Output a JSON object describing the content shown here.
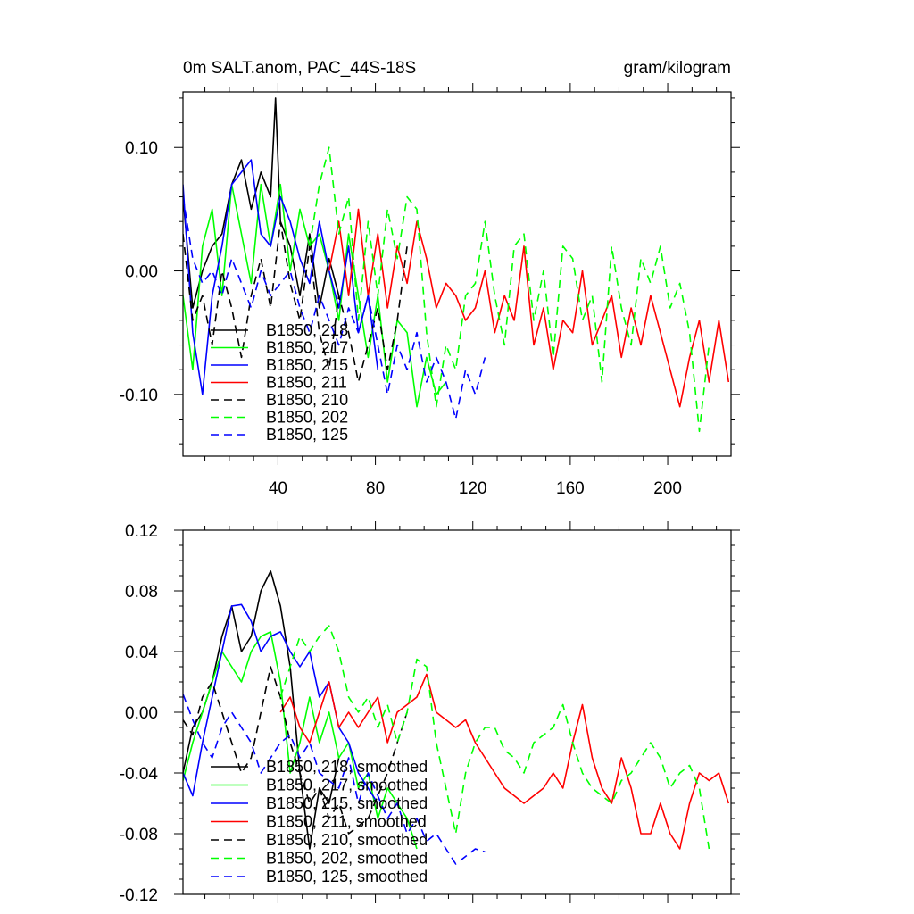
{
  "chart_data": [
    {
      "type": "line",
      "title": "0m SALT.anom, PAC_44S-18S",
      "units": "gram/kilogram",
      "xlabel": "",
      "ylabel": "",
      "xlim": [
        1,
        226
      ],
      "ylim": [
        -0.15,
        0.145
      ],
      "xticks": [
        40,
        80,
        120,
        160,
        200
      ],
      "xtick_labels": [
        "40",
        "80",
        "120",
        "160",
        "200"
      ],
      "yticks": [
        -0.1,
        0.0,
        0.1
      ],
      "ytick_labels": [
        "-0.10",
        "0.00",
        "0.10"
      ],
      "series": [
        {
          "name": "B1850, 218",
          "color": "#000000",
          "dash": "solid",
          "x": [
            1,
            5,
            9,
            13,
            17,
            21,
            25,
            29,
            33,
            37,
            39,
            41,
            45,
            49,
            53,
            57,
            61,
            65
          ],
          "y": [
            0.06,
            -0.03,
            0.0,
            0.02,
            0.03,
            0.07,
            0.09,
            0.05,
            0.08,
            0.06,
            0.14,
            0.04,
            0.02,
            -0.02,
            0.03,
            -0.03,
            0.01,
            -0.02
          ]
        },
        {
          "name": "B1850, 217",
          "color": "#00ff00",
          "dash": "solid",
          "x": [
            1,
            5,
            9,
            13,
            17,
            21,
            25,
            29,
            33,
            37,
            41,
            45,
            49,
            53,
            57,
            61,
            65,
            69,
            73,
            77,
            81,
            85,
            89,
            93,
            97,
            101,
            105,
            109
          ],
          "y": [
            -0.02,
            -0.08,
            0.02,
            0.05,
            -0.02,
            0.07,
            0.03,
            -0.01,
            0.07,
            0.02,
            0.07,
            0.0,
            0.05,
            0.02,
            0.03,
            0.0,
            -0.04,
            0.03,
            -0.02,
            -0.07,
            -0.02,
            -0.09,
            -0.04,
            -0.05,
            -0.11,
            -0.07,
            -0.1,
            -0.09
          ]
        },
        {
          "name": "B1850, 215",
          "color": "#0000ff",
          "dash": "solid",
          "x": [
            1,
            5,
            9,
            13,
            17,
            21,
            25,
            29,
            33,
            37,
            41,
            45,
            49,
            53,
            57,
            61,
            65,
            69,
            73,
            77,
            81
          ],
          "y": [
            0.07,
            -0.05,
            -0.1,
            -0.02,
            0.02,
            0.07,
            0.08,
            0.09,
            0.03,
            0.02,
            0.06,
            0.04,
            0.01,
            -0.01,
            0.04,
            0.0,
            -0.03,
            0.02,
            -0.05,
            -0.02,
            -0.08
          ]
        },
        {
          "name": "B1850, 211",
          "color": "#ff0000",
          "dash": "solid",
          "x": [
            61,
            65,
            69,
            73,
            77,
            81,
            85,
            89,
            93,
            97,
            101,
            105,
            109,
            113,
            117,
            121,
            125,
            129,
            133,
            137,
            141,
            145,
            149,
            153,
            157,
            161,
            165,
            169,
            173,
            177,
            181,
            185,
            189,
            193,
            197,
            201,
            205,
            209,
            213,
            217,
            221,
            225
          ],
          "y": [
            0.0,
            0.04,
            -0.02,
            0.05,
            -0.02,
            0.03,
            -0.03,
            0.02,
            -0.01,
            0.04,
            0.01,
            -0.03,
            -0.01,
            -0.02,
            -0.04,
            -0.03,
            0.0,
            -0.05,
            -0.02,
            -0.04,
            0.02,
            -0.06,
            -0.03,
            -0.08,
            -0.04,
            -0.05,
            0.0,
            -0.06,
            -0.04,
            -0.02,
            -0.07,
            -0.03,
            -0.06,
            -0.02,
            -0.05,
            -0.08,
            -0.11,
            -0.07,
            -0.04,
            -0.09,
            -0.04,
            -0.09
          ]
        },
        {
          "name": "B1850, 210",
          "color": "#000000",
          "dash": "dashed",
          "x": [
            1,
            5,
            9,
            13,
            17,
            21,
            25,
            29,
            33,
            37,
            41,
            45,
            49,
            53,
            57,
            61,
            65,
            69,
            73,
            77,
            81,
            85,
            89,
            93
          ],
          "y": [
            0.03,
            -0.04,
            -0.02,
            -0.06,
            0.0,
            -0.03,
            -0.07,
            -0.02,
            0.01,
            -0.03,
            0.04,
            -0.01,
            -0.04,
            0.02,
            -0.05,
            -0.08,
            -0.02,
            -0.05,
            -0.09,
            -0.06,
            -0.03,
            -0.08,
            -0.04,
            0.02
          ]
        },
        {
          "name": "B1850, 202",
          "color": "#00ff00",
          "dash": "dashed",
          "x": [
            53,
            57,
            61,
            65,
            69,
            73,
            77,
            81,
            85,
            89,
            93,
            97,
            101,
            105,
            109,
            113,
            117,
            121,
            125,
            129,
            133,
            137,
            141,
            145,
            149,
            153,
            157,
            161,
            165,
            169,
            173,
            177,
            181,
            185,
            189,
            193,
            197,
            201,
            205,
            209,
            213,
            217
          ],
          "y": [
            0.02,
            0.07,
            0.1,
            0.03,
            0.06,
            -0.04,
            0.04,
            -0.02,
            0.05,
            0.01,
            0.06,
            0.05,
            -0.05,
            -0.11,
            -0.06,
            -0.08,
            -0.02,
            -0.01,
            0.04,
            -0.02,
            -0.06,
            0.02,
            0.03,
            -0.04,
            0.0,
            -0.07,
            0.02,
            0.01,
            -0.04,
            -0.02,
            -0.09,
            0.02,
            -0.03,
            -0.06,
            0.01,
            -0.01,
            0.02,
            -0.03,
            -0.01,
            -0.05,
            -0.13,
            -0.06
          ]
        },
        {
          "name": "B1850, 125",
          "color": "#0000ff",
          "dash": "dashed",
          "x": [
            1,
            5,
            9,
            13,
            17,
            21,
            25,
            29,
            33,
            37,
            41,
            45,
            49,
            53,
            57,
            61,
            65,
            69,
            73,
            77,
            81,
            85,
            89,
            93,
            97,
            101,
            105,
            109,
            113,
            117,
            121,
            125
          ],
          "y": [
            0.06,
            0.01,
            -0.01,
            0.0,
            -0.02,
            0.01,
            -0.01,
            -0.03,
            0.0,
            -0.02,
            -0.01,
            0.0,
            -0.03,
            -0.05,
            -0.02,
            -0.04,
            -0.06,
            -0.03,
            -0.05,
            -0.02,
            -0.06,
            -0.1,
            -0.06,
            -0.08,
            -0.05,
            -0.09,
            -0.07,
            -0.09,
            -0.12,
            -0.08,
            -0.1,
            -0.07
          ]
        }
      ],
      "legend": "lower-left"
    },
    {
      "type": "line",
      "title": "",
      "xlabel": "",
      "ylabel": "",
      "xlim": [
        1,
        226
      ],
      "ylim": [
        -0.12,
        0.12
      ],
      "xticks": [
        40,
        80,
        120,
        160,
        200
      ],
      "yticks": [
        -0.12,
        -0.08,
        -0.04,
        0.0,
        0.04,
        0.08,
        0.12
      ],
      "ytick_labels": [
        "-0.12",
        "-0.08",
        "-0.04",
        "0.00",
        "0.04",
        "0.08",
        "0.12"
      ],
      "series": [
        {
          "name": "B1850, 218, smoothed",
          "color": "#000000",
          "dash": "solid",
          "x": [
            1,
            5,
            9,
            13,
            17,
            21,
            25,
            29,
            33,
            37,
            41,
            45,
            49,
            53,
            57,
            61,
            65
          ],
          "y": [
            -0.04,
            -0.01,
            0.0,
            0.02,
            0.05,
            0.07,
            0.04,
            0.05,
            0.08,
            0.093,
            0.07,
            0.03,
            -0.04,
            -0.09,
            -0.05,
            -0.06,
            -0.03
          ]
        },
        {
          "name": "B1850, 217, smoothed",
          "color": "#00ff00",
          "dash": "solid",
          "x": [
            1,
            5,
            9,
            13,
            17,
            21,
            25,
            29,
            33,
            37,
            41,
            45,
            49,
            53,
            57,
            61,
            65,
            69,
            73,
            77,
            81,
            85,
            89,
            93,
            97
          ],
          "y": [
            -0.045,
            -0.02,
            0.0,
            0.02,
            0.04,
            0.03,
            0.02,
            0.04,
            0.05,
            0.053,
            0.02,
            -0.04,
            -0.02,
            0.01,
            -0.02,
            0.0,
            -0.03,
            -0.02,
            -0.05,
            -0.04,
            -0.07,
            -0.05,
            -0.06,
            -0.07,
            -0.09
          ]
        },
        {
          "name": "B1850, 215, smoothed",
          "color": "#0000ff",
          "dash": "solid",
          "x": [
            1,
            5,
            9,
            13,
            17,
            21,
            25,
            29,
            33,
            37,
            41,
            45,
            49,
            53,
            57,
            61,
            65,
            69,
            73,
            77,
            81
          ],
          "y": [
            -0.04,
            -0.055,
            -0.02,
            0.01,
            0.04,
            0.07,
            0.071,
            0.06,
            0.04,
            0.05,
            0.053,
            0.04,
            0.03,
            0.04,
            0.01,
            0.02,
            -0.01,
            -0.02,
            -0.04,
            -0.05,
            -0.06
          ]
        },
        {
          "name": "B1850, 211, smoothed",
          "color": "#ff0000",
          "dash": "solid",
          "x": [
            41,
            45,
            49,
            53,
            57,
            61,
            65,
            69,
            73,
            77,
            81,
            85,
            89,
            93,
            97,
            101,
            105,
            109,
            113,
            117,
            121,
            125,
            129,
            133,
            137,
            141,
            145,
            149,
            153,
            157,
            161,
            165,
            169,
            173,
            177,
            181,
            185,
            189,
            193,
            197,
            201,
            205,
            209,
            213,
            217,
            221,
            225
          ],
          "y": [
            0.0,
            0.01,
            -0.01,
            -0.02,
            0.0,
            0.02,
            -0.01,
            0.0,
            -0.01,
            0.0,
            0.01,
            -0.02,
            0.0,
            0.005,
            0.01,
            0.025,
            0.0,
            -0.005,
            -0.01,
            -0.005,
            -0.02,
            -0.03,
            -0.04,
            -0.05,
            -0.055,
            -0.06,
            -0.055,
            -0.05,
            -0.04,
            -0.05,
            -0.02,
            0.005,
            -0.03,
            -0.05,
            -0.06,
            -0.03,
            -0.05,
            -0.08,
            -0.08,
            -0.06,
            -0.08,
            -0.09,
            -0.06,
            -0.04,
            -0.045,
            -0.04,
            -0.06
          ]
        },
        {
          "name": "B1850, 210, smoothed",
          "color": "#000000",
          "dash": "dashed",
          "x": [
            1,
            5,
            9,
            13,
            17,
            21,
            25,
            29,
            33,
            37,
            41,
            45,
            49,
            53,
            57,
            61,
            65,
            69,
            73,
            77,
            81,
            85,
            89,
            93
          ],
          "y": [
            -0.005,
            -0.015,
            0.01,
            0.02,
            0.0,
            -0.02,
            -0.04,
            -0.03,
            0.0,
            0.03,
            0.01,
            -0.02,
            -0.04,
            -0.06,
            -0.05,
            -0.07,
            -0.06,
            -0.08,
            -0.075,
            -0.07,
            -0.055,
            -0.04,
            -0.02,
            0.0
          ]
        },
        {
          "name": "B1850, 202, smoothed",
          "color": "#00ff00",
          "dash": "dashed",
          "x": [
            41,
            45,
            49,
            53,
            57,
            61,
            65,
            69,
            73,
            77,
            81,
            85,
            89,
            93,
            97,
            101,
            105,
            109,
            113,
            117,
            121,
            125,
            129,
            133,
            137,
            141,
            145,
            149,
            153,
            157,
            161,
            165,
            169,
            173,
            177,
            181,
            185,
            189,
            193,
            197,
            201,
            205,
            209,
            213,
            217
          ],
          "y": [
            0.01,
            0.03,
            0.05,
            0.04,
            0.05,
            0.057,
            0.04,
            0.01,
            0.0,
            0.01,
            -0.01,
            0.005,
            -0.02,
            0.0,
            0.035,
            0.03,
            -0.02,
            -0.05,
            -0.08,
            -0.04,
            -0.02,
            -0.01,
            -0.01,
            -0.025,
            -0.03,
            -0.04,
            -0.02,
            -0.015,
            -0.01,
            0.005,
            -0.02,
            -0.04,
            -0.05,
            -0.055,
            -0.06,
            -0.045,
            -0.04,
            -0.03,
            -0.02,
            -0.03,
            -0.05,
            -0.04,
            -0.035,
            -0.05,
            -0.09
          ]
        },
        {
          "name": "B1850, 125, smoothed",
          "color": "#0000ff",
          "dash": "dashed",
          "x": [
            1,
            5,
            9,
            13,
            17,
            21,
            25,
            29,
            33,
            37,
            41,
            45,
            49,
            53,
            57,
            61,
            65,
            69,
            73,
            77,
            81,
            85,
            89,
            93,
            97,
            101,
            105,
            109,
            113,
            117,
            121,
            125
          ],
          "y": [
            0.012,
            -0.005,
            -0.02,
            -0.03,
            -0.01,
            0.0,
            -0.01,
            -0.02,
            -0.04,
            -0.03,
            -0.02,
            -0.015,
            -0.03,
            -0.02,
            -0.04,
            -0.045,
            -0.05,
            -0.03,
            -0.06,
            -0.04,
            -0.055,
            -0.07,
            -0.06,
            -0.08,
            -0.07,
            -0.085,
            -0.08,
            -0.09,
            -0.1,
            -0.095,
            -0.09,
            -0.092
          ]
        }
      ],
      "legend": "lower-left"
    }
  ]
}
